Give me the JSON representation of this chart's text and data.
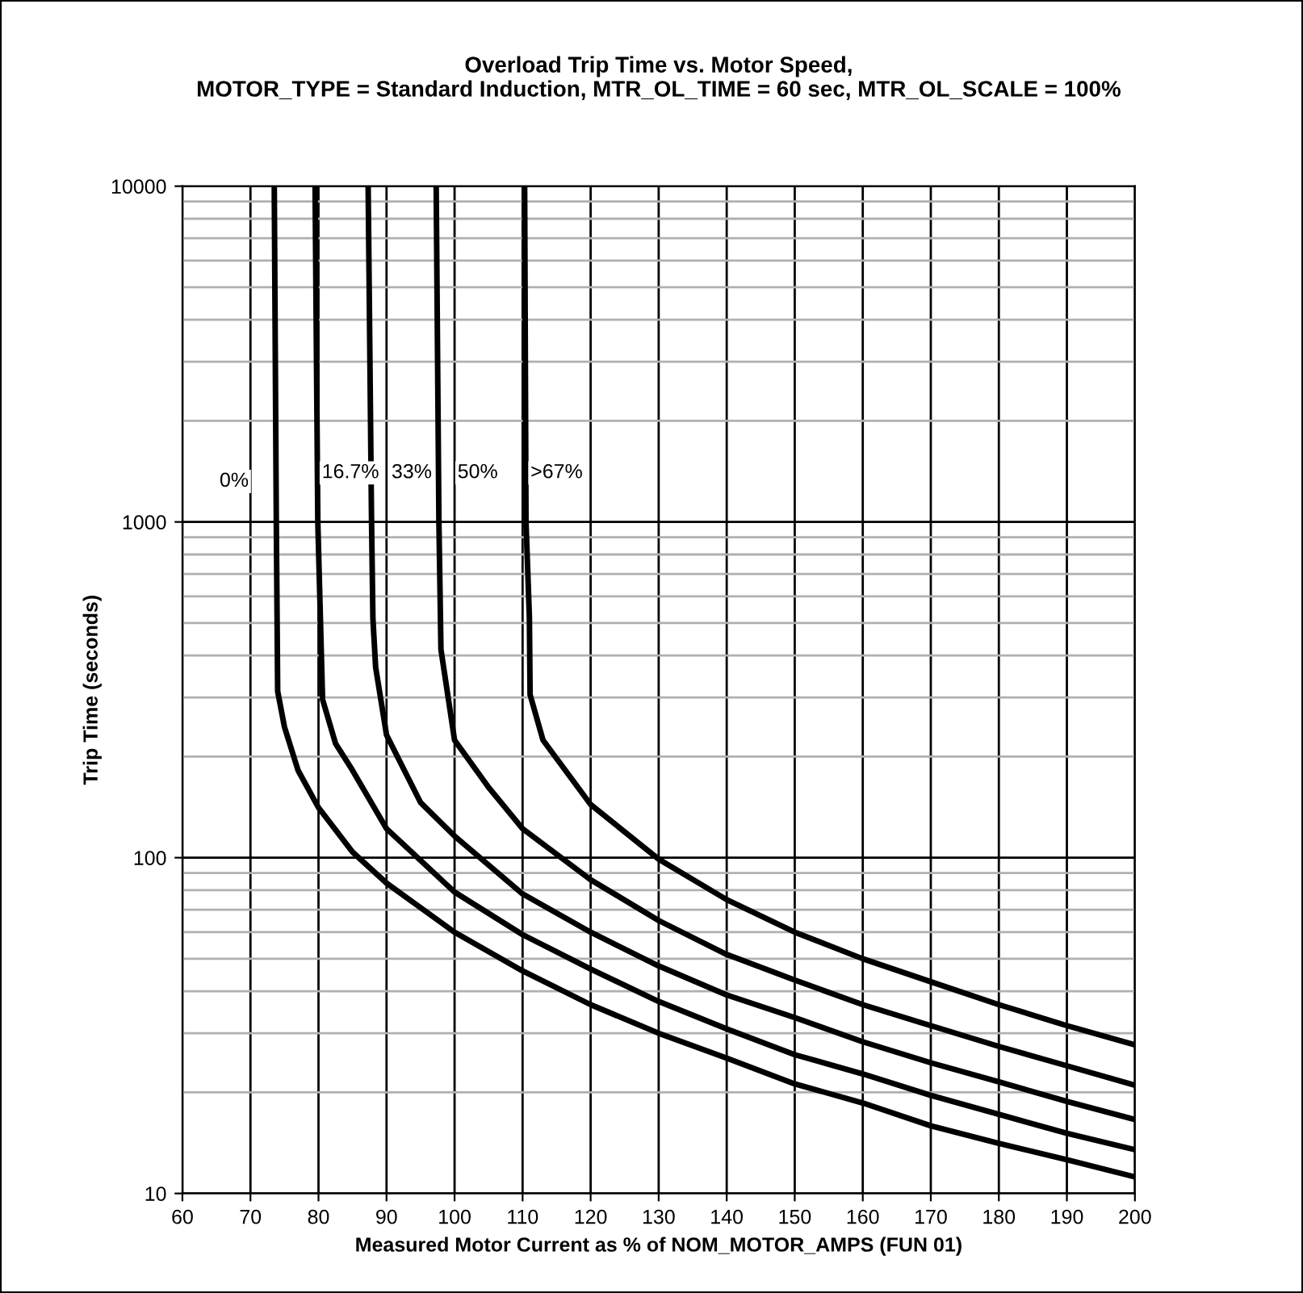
{
  "chart_data": {
    "type": "line",
    "title": "Overload Trip Time vs. Motor Speed,\nMOTOR_TYPE = Standard Induction, MTR_OL_TIME = 60 sec, MTR_OL_SCALE = 100%",
    "xlabel": "Measured Motor Current as % of NOM_MOTOR_AMPS (FUN 01)",
    "ylabel": "Trip Time (seconds)",
    "log": "y",
    "grid": true,
    "marker": "none",
    "line_style": "solid",
    "xlim": [
      60,
      200
    ],
    "xticks": [
      60,
      70,
      80,
      90,
      100,
      110,
      120,
      130,
      140,
      150,
      160,
      170,
      180,
      190,
      200
    ],
    "ylim": [
      10,
      10000
    ],
    "yticks": [
      10,
      100,
      1000,
      10000
    ],
    "series": [
      {
        "color": "#000000",
        "x": [
          73.5,
          73.8,
          74.0,
          75,
          77,
          80,
          85,
          90,
          100,
          110,
          120,
          130,
          140,
          150,
          160,
          170,
          180,
          190,
          200
        ],
        "values": [
          10000,
          1000,
          313,
          245,
          182,
          141,
          104,
          84,
          60,
          46,
          36.5,
          30,
          25.3,
          21.2,
          18.6,
          15.9,
          14.1,
          12.6,
          11.2
        ]
      },
      {
        "color": "#000000",
        "x": [
          79.5,
          79.9,
          80.6,
          82.5,
          85,
          90,
          100,
          110,
          120,
          130,
          140,
          150,
          160,
          170,
          180,
          190,
          200
        ],
        "values": [
          10000,
          1000,
          296,
          219,
          182,
          122,
          79,
          59,
          46.6,
          37.3,
          30.9,
          25.9,
          22.7,
          19.6,
          17.2,
          15.1,
          13.5
        ]
      },
      {
        "color": "#000000",
        "x": [
          87.3,
          87.8,
          88.0,
          88.4,
          90,
          95,
          100,
          110,
          120,
          130,
          140,
          150,
          160,
          170,
          180,
          190,
          200
        ],
        "values": [
          10000,
          1000,
          515,
          369,
          232,
          146,
          116,
          78,
          60,
          47.6,
          39,
          33.4,
          28.3,
          24.5,
          21.5,
          18.8,
          16.6
        ]
      },
      {
        "color": "#000000",
        "x": [
          97.3,
          97.7,
          98.0,
          100,
          105,
          110,
          120,
          130,
          140,
          150,
          160,
          170,
          180,
          190,
          200
        ],
        "values": [
          10000,
          1000,
          417,
          224,
          162,
          122,
          86,
          65,
          51.5,
          43.2,
          36.5,
          31.6,
          27.4,
          24,
          21
        ]
      },
      {
        "color": "#000000",
        "x": [
          110.3,
          110.5,
          111.0,
          111.1,
          113,
          120,
          130,
          140,
          150,
          160,
          170,
          180,
          190,
          200
        ],
        "values": [
          10000,
          1000,
          520,
          306,
          224,
          144,
          99,
          75,
          60,
          50,
          42.7,
          36.5,
          31.6,
          27.7
        ]
      }
    ],
    "annotations": [
      {
        "text": "0%",
        "x": 67.6,
        "y": 1320
      },
      {
        "text": "16.7%",
        "x": 84.7,
        "y": 1400
      },
      {
        "text": "33%",
        "x": 93.7,
        "y": 1400
      },
      {
        "text": "50%",
        "x": 103.4,
        "y": 1400
      },
      {
        "text": ">67%",
        "x": 115,
        "y": 1400
      }
    ]
  }
}
